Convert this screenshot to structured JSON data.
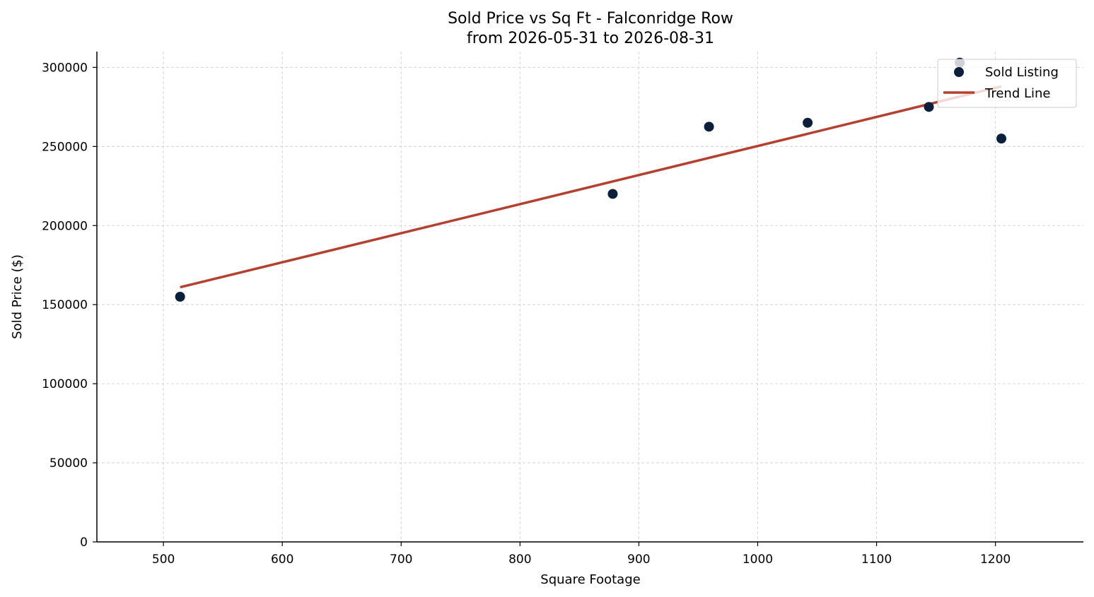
{
  "chart_data": {
    "type": "scatter",
    "title": "Sold Price vs Sq Ft - Falconridge Row",
    "subtitle": "from 2026-05-31 to 2026-08-31",
    "xlabel": "Square Footage",
    "ylabel": "Sold Price ($)",
    "xlim": [
      444,
      1274
    ],
    "ylim": [
      0,
      310000
    ],
    "xticks": [
      500,
      600,
      700,
      800,
      900,
      1000,
      1100,
      1200
    ],
    "yticks": [
      0,
      50000,
      100000,
      150000,
      200000,
      250000,
      300000
    ],
    "grid": true,
    "legend_position": "top-right",
    "series": [
      {
        "name": "Sold Listing",
        "kind": "scatter",
        "color": "#0b1f3a",
        "points": [
          {
            "x": 514,
            "y": 155000
          },
          {
            "x": 878,
            "y": 220000
          },
          {
            "x": 959,
            "y": 262500
          },
          {
            "x": 1042,
            "y": 265000
          },
          {
            "x": 1144,
            "y": 275000
          },
          {
            "x": 1170,
            "y": 303000
          },
          {
            "x": 1205,
            "y": 255000
          }
        ]
      },
      {
        "name": "Trend Line",
        "kind": "line",
        "color": "#b5402f",
        "points": [
          {
            "x": 514,
            "y": 161000
          },
          {
            "x": 1205,
            "y": 288000
          }
        ]
      }
    ]
  }
}
